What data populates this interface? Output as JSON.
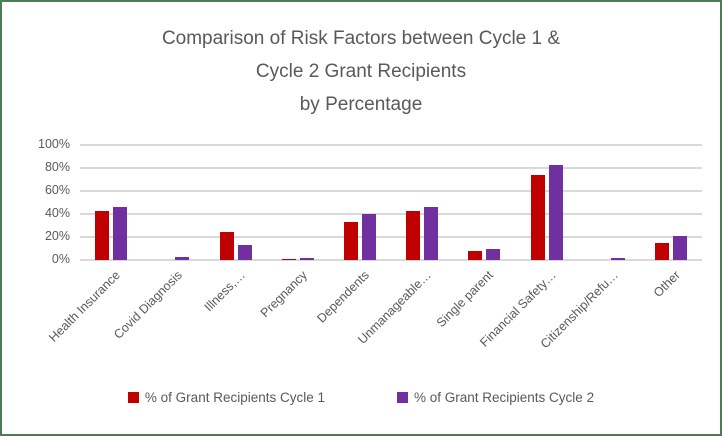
{
  "chart_data": {
    "type": "bar",
    "title": "Comparison of Risk Factors between Cycle 1 & Cycle 2 Grant Recipients by Percentage",
    "title_lines": [
      "Comparison of Risk Factors between Cycle 1 &",
      "Cycle 2 Grant Recipients",
      "by Percentage"
    ],
    "categories": [
      "Health Insurance",
      "Covid Diagnosis",
      "Illness,…",
      "Pregnancy",
      "Dependents",
      "Unmanageable…",
      "Single parent",
      "Financial Safety…",
      "Citizenship/Refu…",
      "Other"
    ],
    "series": [
      {
        "name": "% of Grant Recipients Cycle 1",
        "color": "#C00000",
        "values": [
          43,
          0,
          24,
          1,
          33,
          43,
          8,
          74,
          0,
          15
        ]
      },
      {
        "name": "% of Grant Recipients Cycle 2",
        "color": "#7030A0",
        "values": [
          46,
          3,
          13,
          1.5,
          40,
          46,
          10,
          83,
          2,
          21
        ]
      }
    ],
    "xlabel": "",
    "ylabel": "",
    "ylim": [
      0,
      100
    ],
    "yticks": [
      0,
      20,
      40,
      60,
      80,
      100
    ],
    "ytick_labels": [
      "0%",
      "20%",
      "40%",
      "60%",
      "80%",
      "100%"
    ],
    "grid": true,
    "legend_position": "bottom"
  },
  "style": {
    "series1_color": "#C00000",
    "series2_color": "#7030A0",
    "text_color": "#595959",
    "gridline_color": "#D9D9D9",
    "frame_border_color": "#4D7A58",
    "background_color": "#FFFFFF"
  }
}
